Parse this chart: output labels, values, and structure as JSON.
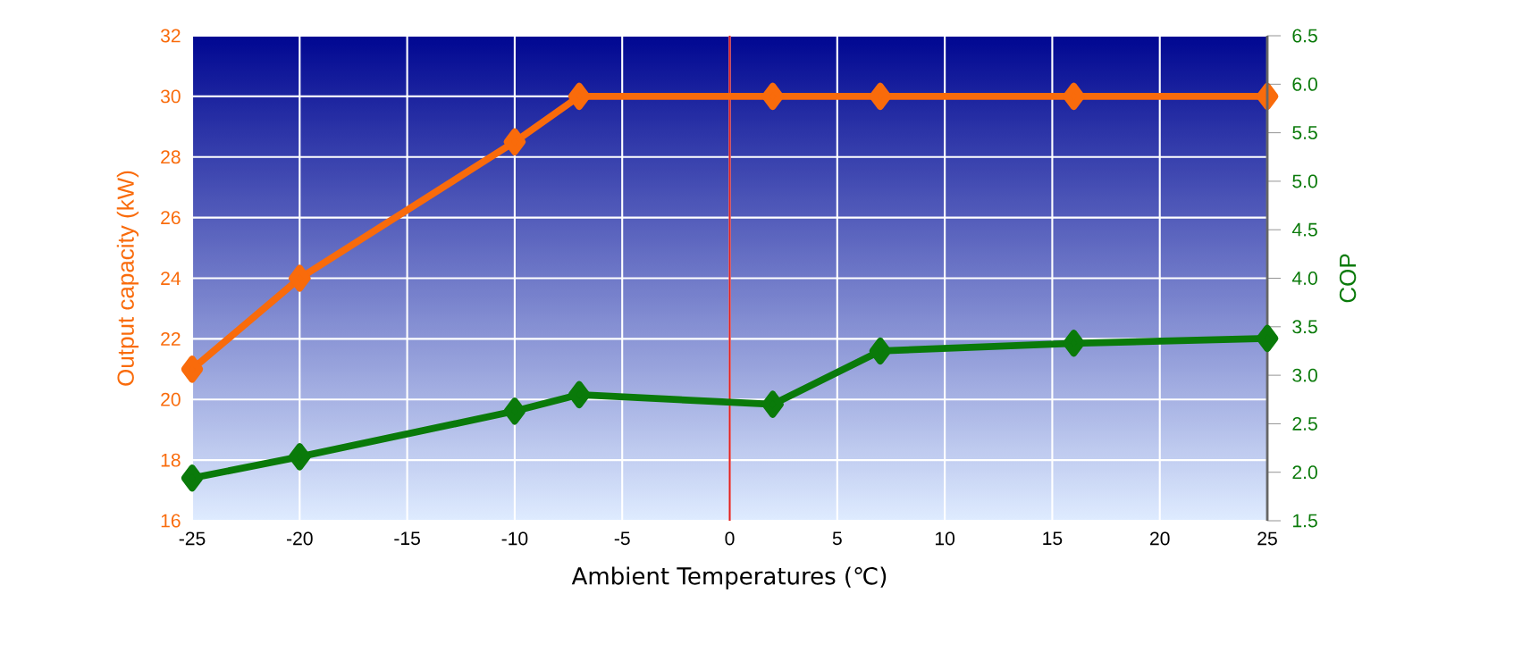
{
  "chart_data": {
    "type": "line",
    "xlabel": "Ambient Temperatures (℃)",
    "ylabel": "Output capacity (kW)",
    "y2label": "COP",
    "x": [
      -25,
      -20,
      -10,
      -7,
      2,
      7,
      16,
      25
    ],
    "series": [
      {
        "color": "#f96b0b",
        "values": [
          21,
          24,
          28.5,
          30,
          30,
          30,
          30,
          30
        ]
      },
      {
        "color": "#0a7a0a",
        "axis": "y2",
        "values": [
          1.94,
          2.16,
          2.63,
          2.8,
          2.7,
          3.25,
          3.33,
          3.38
        ]
      }
    ],
    "xlim": [
      -25,
      25
    ],
    "xticks": [
      -25,
      -20,
      -15,
      -10,
      -5,
      0,
      5,
      10,
      15,
      20,
      25
    ],
    "ylim": [
      16,
      32
    ],
    "yticks": [
      16,
      18,
      20,
      22,
      24,
      26,
      28,
      30,
      32
    ],
    "y2lim": [
      1.5,
      6.5
    ],
    "y2ticks": [
      {
        "value": 1.5,
        "label": "1.5"
      },
      {
        "value": 2,
        "label": "2.0"
      },
      {
        "value": 2.5,
        "label": "2.5"
      },
      {
        "value": 3,
        "label": "3.0"
      },
      {
        "value": 3.5,
        "label": "3.5"
      },
      {
        "value": 4,
        "label": "4.0"
      },
      {
        "value": 4.5,
        "label": "4.5"
      },
      {
        "value": 5,
        "label": "5.0"
      },
      {
        "value": 5.5,
        "label": "5.5"
      },
      {
        "value": 6,
        "label": "6.0"
      },
      {
        "value": 6.5,
        "label": "6.5"
      }
    ],
    "ref_lines": [
      {
        "axis": "x",
        "value": 0,
        "color": "#e02020"
      }
    ],
    "grid": true,
    "marker": "diamond",
    "line_style": "solid"
  }
}
